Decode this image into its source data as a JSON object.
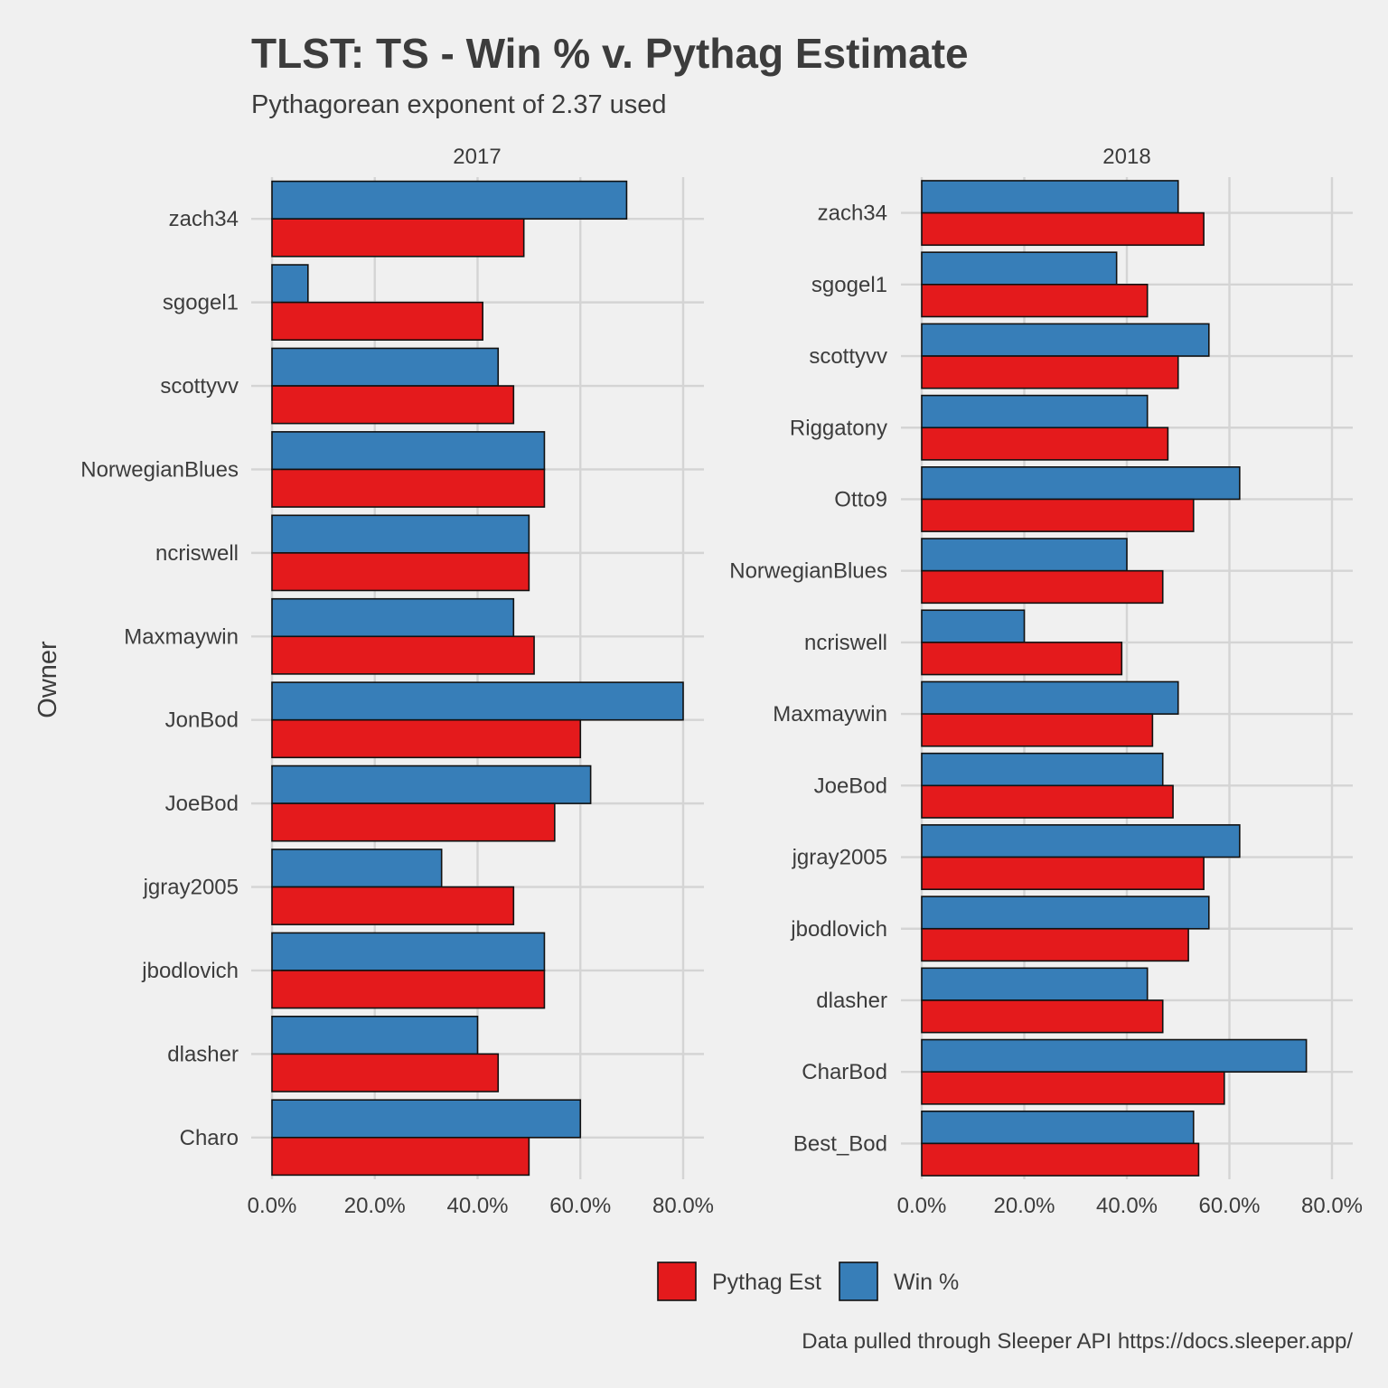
{
  "colors": {
    "pythag": "#e41a1c",
    "win": "#377eb8",
    "background": "#f0f0f0",
    "grid": "#d4d4d4"
  },
  "chart_data": {
    "type": "bar",
    "orientation": "horizontal",
    "title": "TLST: TS - Win % v. Pythag Estimate",
    "subtitle": "Pythagorean exponent of 2.37 used",
    "ylabel": "Owner",
    "xlabel": "",
    "caption": "Data pulled through Sleeper API https://docs.sleeper.app/",
    "xlim": [
      0,
      80
    ],
    "xticks": [
      0,
      20,
      40,
      60,
      80
    ],
    "xtick_labels": [
      "0.0%",
      "20.0%",
      "40.0%",
      "60.0%",
      "80.0%"
    ],
    "grid": true,
    "legend": {
      "position": "bottom",
      "entries": [
        {
          "name": "Pythag Est",
          "color": "#e41a1c"
        },
        {
          "name": "Win %",
          "color": "#377eb8"
        }
      ]
    },
    "panels": [
      {
        "strip": "2017",
        "categories": [
          "zach34",
          "sgogel1",
          "scottyvv",
          "NorwegianBlues",
          "ncriswell",
          "Maxmaywin",
          "JonBod",
          "JoeBod",
          "jgray2005",
          "jbodlovich",
          "dlasher",
          "Charo"
        ],
        "series": [
          {
            "name": "Win %",
            "values": [
              69,
              7,
              44,
              53,
              50,
              47,
              80,
              62,
              33,
              53,
              40,
              60
            ]
          },
          {
            "name": "Pythag Est",
            "values": [
              49,
              41,
              47,
              53,
              50,
              51,
              60,
              55,
              47,
              53,
              44,
              50
            ]
          }
        ]
      },
      {
        "strip": "2018",
        "categories": [
          "zach34",
          "sgogel1",
          "scottyvv",
          "Riggatony",
          "Otto9",
          "NorwegianBlues",
          "ncriswell",
          "Maxmaywin",
          "JoeBod",
          "jgray2005",
          "jbodlovich",
          "dlasher",
          "CharBod",
          "Best_Bod"
        ],
        "series": [
          {
            "name": "Win %",
            "values": [
              50,
              38,
              56,
              44,
              62,
              40,
              20,
              50,
              47,
              62,
              56,
              44,
              75,
              53
            ]
          },
          {
            "name": "Pythag Est",
            "values": [
              55,
              44,
              50,
              48,
              53,
              47,
              39,
              45,
              49,
              55,
              52,
              47,
              59,
              54
            ]
          }
        ]
      }
    ]
  }
}
